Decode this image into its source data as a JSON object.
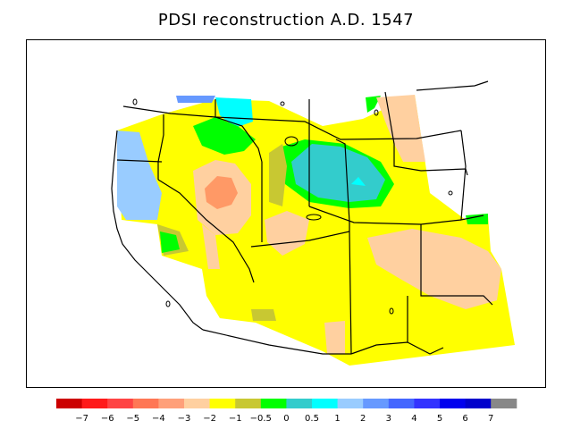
{
  "title": "PDSI reconstruction A.D. 1547",
  "legend": {
    "colors": [
      "#cc0000",
      "#ff1a1a",
      "#ff4444",
      "#ff7755",
      "#ffa07a",
      "#ffd0a0",
      "#ffff00",
      "#c8c832",
      "#00ff00",
      "#33cccc",
      "#00ffff",
      "#99ccff",
      "#6699ff",
      "#4466ff",
      "#3333ff",
      "#0000ee",
      "#0000cc",
      "#888888"
    ],
    "labels": [
      "−7",
      "−6",
      "−5",
      "−4",
      "−3",
      "−2",
      "−1",
      "−0.5",
      "0",
      "0.5",
      "1",
      "2",
      "3",
      "4",
      "5",
      "6",
      "7"
    ]
  },
  "colors": {
    "very_wet": "#33cccc",
    "wet": "#00ff00",
    "near_normal": "#c8c832",
    "dry": "#ffff00",
    "drier": "#ffd0a0",
    "driest": "#ff9966",
    "wettest": "#99ccff"
  }
}
